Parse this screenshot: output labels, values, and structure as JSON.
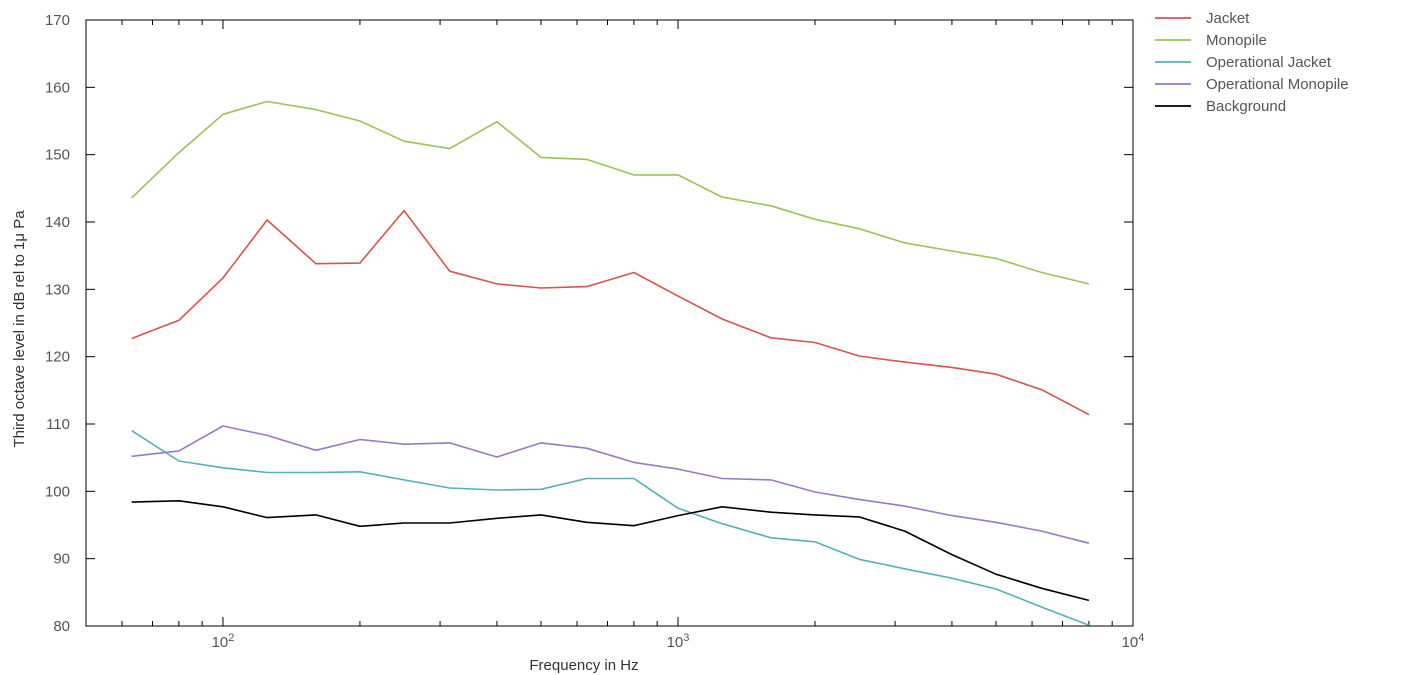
{
  "chart_data": {
    "type": "line",
    "title": "",
    "xlabel": "Frequency in Hz",
    "ylabel": "Third octave level in dB rel to 1μ Pa",
    "xscale": "log",
    "xlim": [
      50,
      10000
    ],
    "ylim": [
      80,
      170
    ],
    "grid": false,
    "legend_position": "outside-top-right",
    "x_ticks": [
      {
        "value": 100,
        "base": "10",
        "exp": "2"
      },
      {
        "value": 1000,
        "base": "10",
        "exp": "3"
      },
      {
        "value": 10000,
        "base": "10",
        "exp": "4"
      }
    ],
    "y_ticks": [
      80,
      90,
      100,
      110,
      120,
      130,
      140,
      150,
      160,
      170
    ],
    "x": [
      63,
      80,
      100,
      125,
      160,
      200,
      250,
      315,
      400,
      500,
      630,
      800,
      1000,
      1250,
      1600,
      2000,
      2500,
      3150,
      4000,
      5000,
      6300,
      8000
    ],
    "series": [
      {
        "name": "Jacket",
        "color": "#d9534f",
        "values": [
          122.7,
          125.4,
          131.7,
          140.3,
          133.8,
          133.9,
          141.7,
          132.7,
          130.8,
          130.2,
          130.4,
          132.5,
          129.0,
          125.6,
          122.8,
          122.1,
          120.1,
          119.2,
          118.4,
          117.4,
          115.1,
          111.4
        ]
      },
      {
        "name": "Monopile",
        "color": "#9cc25a",
        "values": [
          143.6,
          150.3,
          156.0,
          157.9,
          156.7,
          155.0,
          152.0,
          150.9,
          154.9,
          149.6,
          149.3,
          147.0,
          147.0,
          143.7,
          142.4,
          140.4,
          139.0,
          136.9,
          135.7,
          134.6,
          132.5,
          130.8
        ]
      },
      {
        "name": "Operational Jacket",
        "color": "#55b1b5",
        "values": [
          109.0,
          104.5,
          103.5,
          102.8,
          102.8,
          102.9,
          101.7,
          100.5,
          100.2,
          100.3,
          101.9,
          101.9,
          97.5,
          95.2,
          93.1,
          92.5,
          89.9,
          88.5,
          87.1,
          85.5,
          82.8,
          80.1
        ]
      },
      {
        "name": "Operational Monopile",
        "color": "#9a7ac0",
        "values": [
          105.2,
          106.0,
          109.7,
          108.3,
          106.1,
          107.7,
          107.0,
          107.2,
          105.1,
          107.2,
          106.4,
          104.3,
          103.3,
          101.9,
          101.7,
          99.9,
          98.8,
          97.8,
          96.4,
          95.4,
          94.1,
          92.3
        ]
      },
      {
        "name": "Background",
        "color": "#000000",
        "values": [
          98.4,
          98.6,
          97.7,
          96.1,
          96.5,
          94.8,
          95.3,
          95.3,
          96.0,
          96.5,
          95.4,
          94.9,
          96.4,
          97.7,
          96.9,
          96.5,
          96.2,
          94.1,
          90.6,
          87.7,
          85.6,
          83.8
        ]
      }
    ]
  }
}
